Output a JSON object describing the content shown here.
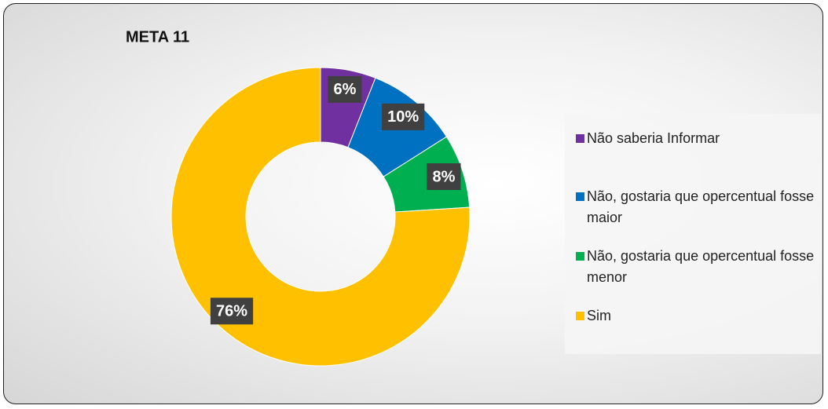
{
  "chart_data": {
    "type": "donut",
    "title": "META 11",
    "categories": [
      "Não saberia Informar",
      "Não, gostaria que opercentual fosse maior",
      "Não, gostaria que opercentual fosse menor",
      "Sim"
    ],
    "values": [
      6,
      10,
      8,
      76
    ],
    "value_labels": [
      "6%",
      "10%",
      "8%",
      "76%"
    ],
    "colors": [
      "#7030a0",
      "#0070c0",
      "#00b050",
      "#ffc000"
    ],
    "legend": "right"
  }
}
